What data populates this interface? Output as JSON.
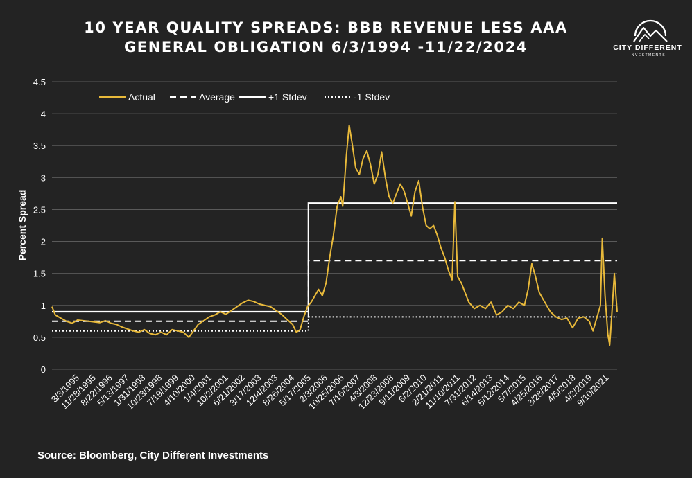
{
  "title_lines": [
    "10 YEAR QUALITY SPREADS: BBB REVENUE LESS AAA",
    "GENERAL OBLIGATION 6/3/1994 -11/22/2024"
  ],
  "logo": {
    "name": "CITY DIFFERENT",
    "sub": "INVESTMENTS",
    "icon": "mountain-circle-logo"
  },
  "source": "Source: Bloomberg, City Different Investments",
  "colors": {
    "background": "#232323",
    "actual": "#e8b93a",
    "reference": "#ffffff",
    "grid": "#5a5a5a"
  },
  "chart_data": {
    "type": "line",
    "title": "10 YEAR QUALITY SPREADS: BBB REVENUE LESS AAA GENERAL OBLIGATION 6/3/1994 -11/22/2024",
    "xlabel": "",
    "ylabel": "Percent Spread",
    "ylim": [
      0,
      4.5
    ],
    "yticks": [
      "0",
      "0.5",
      "1",
      "1.5",
      "2",
      "2.5",
      "3",
      "3.5",
      "4",
      "4.5"
    ],
    "grid": "horizontal",
    "legend_position": "top-left",
    "x_tick_labels": [
      "3/3/1995",
      "11/28/1995",
      "8/22/1996",
      "5/13/1997",
      "1/31/1998",
      "10/23/1998",
      "7/19/1999",
      "4/10/2000",
      "1/4/2001",
      "10/2/2001",
      "6/21/2002",
      "3/17/2003",
      "12/4/2003",
      "8/26/2004",
      "5/17/2005",
      "2/3/2006",
      "10/25/2006",
      "7/16/2007",
      "4/3/2008",
      "12/23/2008",
      "9/11/2009",
      "6/2/2010",
      "2/21/2011",
      "11/10/2011",
      "7/31/2012",
      "6/14/2013",
      "5/12/2014",
      "5/7/2015",
      "4/25/2016",
      "3/28/2017",
      "4/5/2018",
      "4/2/2019",
      "9/10/2021"
    ],
    "xlim": [
      1994.42,
      2024.9
    ],
    "series": [
      {
        "name": "Actual",
        "style": "solid",
        "points": [
          [
            1994.42,
            0.98
          ],
          [
            1994.6,
            0.85
          ],
          [
            1994.9,
            0.8
          ],
          [
            1995.2,
            0.75
          ],
          [
            1995.5,
            0.72
          ],
          [
            1995.8,
            0.77
          ],
          [
            1996.1,
            0.76
          ],
          [
            1996.4,
            0.75
          ],
          [
            1996.7,
            0.74
          ],
          [
            1997.0,
            0.73
          ],
          [
            1997.3,
            0.76
          ],
          [
            1997.6,
            0.72
          ],
          [
            1997.9,
            0.7
          ],
          [
            1998.2,
            0.66
          ],
          [
            1998.5,
            0.63
          ],
          [
            1998.8,
            0.6
          ],
          [
            1999.1,
            0.58
          ],
          [
            1999.4,
            0.62
          ],
          [
            1999.7,
            0.56
          ],
          [
            2000.0,
            0.54
          ],
          [
            2000.3,
            0.58
          ],
          [
            2000.6,
            0.54
          ],
          [
            2000.9,
            0.62
          ],
          [
            2001.2,
            0.6
          ],
          [
            2001.5,
            0.58
          ],
          [
            2001.8,
            0.5
          ],
          [
            2002.0,
            0.58
          ],
          [
            2002.3,
            0.7
          ],
          [
            2002.6,
            0.76
          ],
          [
            2002.9,
            0.82
          ],
          [
            2003.2,
            0.85
          ],
          [
            2003.5,
            0.9
          ],
          [
            2003.8,
            0.86
          ],
          [
            2004.1,
            0.92
          ],
          [
            2004.4,
            0.98
          ],
          [
            2004.7,
            1.04
          ],
          [
            2005.0,
            1.08
          ],
          [
            2005.3,
            1.06
          ],
          [
            2005.6,
            1.02
          ],
          [
            2005.9,
            1.0
          ],
          [
            2006.2,
            0.98
          ],
          [
            2006.5,
            0.92
          ],
          [
            2006.8,
            0.86
          ],
          [
            2007.1,
            0.78
          ],
          [
            2007.4,
            0.7
          ],
          [
            2007.6,
            0.58
          ],
          [
            2007.8,
            0.62
          ],
          [
            2008.0,
            0.82
          ],
          [
            2008.2,
            0.98
          ],
          [
            2008.4,
            1.05
          ],
          [
            2008.6,
            1.15
          ],
          [
            2008.8,
            1.25
          ],
          [
            2009.0,
            1.15
          ],
          [
            2009.2,
            1.35
          ],
          [
            2009.4,
            1.75
          ],
          [
            2009.6,
            2.1
          ],
          [
            2009.8,
            2.55
          ],
          [
            2010.0,
            2.7
          ],
          [
            2010.1,
            2.55
          ],
          [
            2010.3,
            3.35
          ],
          [
            2010.45,
            3.82
          ],
          [
            2010.6,
            3.55
          ],
          [
            2010.8,
            3.15
          ],
          [
            2011.0,
            3.05
          ],
          [
            2011.2,
            3.3
          ],
          [
            2011.4,
            3.42
          ],
          [
            2011.6,
            3.2
          ],
          [
            2011.8,
            2.9
          ],
          [
            2012.0,
            3.05
          ],
          [
            2012.2,
            3.4
          ],
          [
            2012.4,
            3.0
          ],
          [
            2012.6,
            2.7
          ],
          [
            2012.8,
            2.6
          ],
          [
            2013.0,
            2.75
          ],
          [
            2013.2,
            2.9
          ],
          [
            2013.4,
            2.8
          ],
          [
            2013.6,
            2.6
          ],
          [
            2013.8,
            2.4
          ],
          [
            2014.0,
            2.78
          ],
          [
            2014.2,
            2.95
          ],
          [
            2014.4,
            2.55
          ],
          [
            2014.6,
            2.25
          ],
          [
            2014.8,
            2.2
          ],
          [
            2015.0,
            2.25
          ],
          [
            2015.2,
            2.1
          ],
          [
            2015.4,
            1.9
          ],
          [
            2015.6,
            1.75
          ],
          [
            2015.8,
            1.55
          ],
          [
            2016.0,
            1.4
          ],
          [
            2016.15,
            2.62
          ],
          [
            2016.3,
            1.45
          ],
          [
            2016.5,
            1.35
          ],
          [
            2016.7,
            1.2
          ],
          [
            2016.9,
            1.05
          ],
          [
            2017.2,
            0.95
          ],
          [
            2017.5,
            1.0
          ],
          [
            2017.8,
            0.95
          ],
          [
            2018.1,
            1.05
          ],
          [
            2018.4,
            0.85
          ],
          [
            2018.7,
            0.9
          ],
          [
            2019.0,
            1.0
          ],
          [
            2019.3,
            0.95
          ],
          [
            2019.6,
            1.05
          ],
          [
            2019.9,
            1.0
          ],
          [
            2020.1,
            1.25
          ],
          [
            2020.3,
            1.65
          ],
          [
            2020.5,
            1.45
          ],
          [
            2020.7,
            1.2
          ],
          [
            2021.0,
            1.05
          ],
          [
            2021.3,
            0.9
          ],
          [
            2021.6,
            0.82
          ],
          [
            2021.9,
            0.78
          ],
          [
            2022.2,
            0.8
          ],
          [
            2022.5,
            0.65
          ],
          [
            2022.8,
            0.8
          ],
          [
            2023.1,
            0.82
          ],
          [
            2023.4,
            0.75
          ],
          [
            2023.6,
            0.6
          ],
          [
            2023.8,
            0.8
          ],
          [
            2024.0,
            1.0
          ],
          [
            2024.1,
            2.05
          ],
          [
            2024.25,
            1.15
          ],
          [
            2024.4,
            0.55
          ],
          [
            2024.5,
            0.38
          ],
          [
            2024.6,
            0.8
          ],
          [
            2024.75,
            1.5
          ],
          [
            2024.9,
            0.9
          ]
        ]
      },
      {
        "name": "Average",
        "style": "dashed",
        "segments": [
          {
            "x": [
              1994.42,
              2008.25
            ],
            "y": 0.75
          },
          {
            "x": [
              2008.25,
              2024.9
            ],
            "y": 1.7
          }
        ]
      },
      {
        "name": "+1 Stdev",
        "style": "solid",
        "segments": [
          {
            "x": [
              1994.42,
              2008.25
            ],
            "y": 0.9
          },
          {
            "x": [
              2008.25,
              2024.9
            ],
            "y": 2.6
          }
        ]
      },
      {
        "name": "-1 Stdev",
        "style": "dotted",
        "segments": [
          {
            "x": [
              1994.42,
              2008.25
            ],
            "y": 0.6
          },
          {
            "x": [
              2008.25,
              2024.9
            ],
            "y": 0.82
          }
        ]
      }
    ]
  }
}
